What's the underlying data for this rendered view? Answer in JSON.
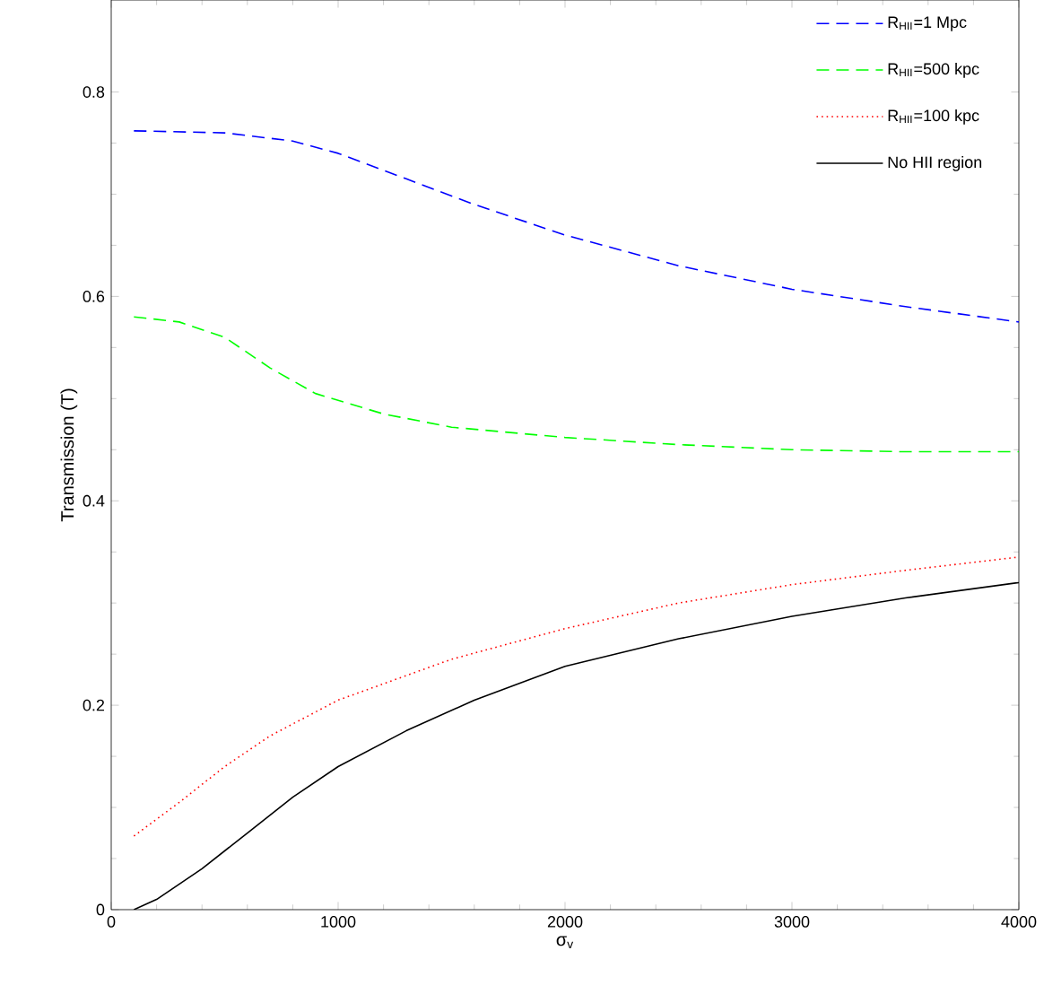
{
  "chart_data": {
    "type": "line",
    "xlabel": "σ$_{v}$",
    "ylabel": "Transmission (T)",
    "xlim": [
      0,
      4000
    ],
    "ylim": [
      0,
      0.89
    ],
    "xticks": [
      0,
      1000,
      2000,
      3000,
      4000
    ],
    "yticks": [
      0,
      0.2,
      0.4,
      0.6,
      0.8
    ],
    "legend": "top right",
    "grid": false,
    "marker": "none",
    "series": [
      {
        "name": "R$_{HII}$=1 Mpc",
        "color": "#0000ff",
        "line_style": "dashed",
        "x": [
          100,
          500,
          800,
          1000,
          1300,
          1600,
          2000,
          2500,
          3000,
          3500,
          4000
        ],
        "values": [
          0.762,
          0.76,
          0.752,
          0.74,
          0.715,
          0.69,
          0.66,
          0.63,
          0.607,
          0.59,
          0.575
        ]
      },
      {
        "name": "R$_{HII}$=500 kpc",
        "color": "#00ff00",
        "line_style": "dashed",
        "x": [
          100,
          300,
          500,
          700,
          900,
          1200,
          1500,
          2000,
          2500,
          3000,
          3500,
          4000
        ],
        "values": [
          0.58,
          0.575,
          0.56,
          0.53,
          0.505,
          0.485,
          0.472,
          0.462,
          0.455,
          0.45,
          0.448,
          0.448
        ]
      },
      {
        "name": "R$_{HII}$=100 kpc",
        "color": "#ff0000",
        "line_style": "dotted",
        "x": [
          100,
          300,
          500,
          700,
          1000,
          1500,
          2000,
          2500,
          3000,
          3500,
          4000
        ],
        "values": [
          0.072,
          0.105,
          0.14,
          0.17,
          0.205,
          0.245,
          0.275,
          0.3,
          0.318,
          0.332,
          0.345
        ]
      },
      {
        "name": "No HII region",
        "color": "#000000",
        "line_style": "solid",
        "x": [
          100,
          200,
          400,
          600,
          800,
          1000,
          1300,
          1600,
          2000,
          2500,
          3000,
          3500,
          4000
        ],
        "values": [
          0.0,
          0.01,
          0.04,
          0.075,
          0.11,
          0.14,
          0.175,
          0.205,
          0.238,
          0.265,
          0.287,
          0.305,
          0.32
        ]
      }
    ]
  }
}
